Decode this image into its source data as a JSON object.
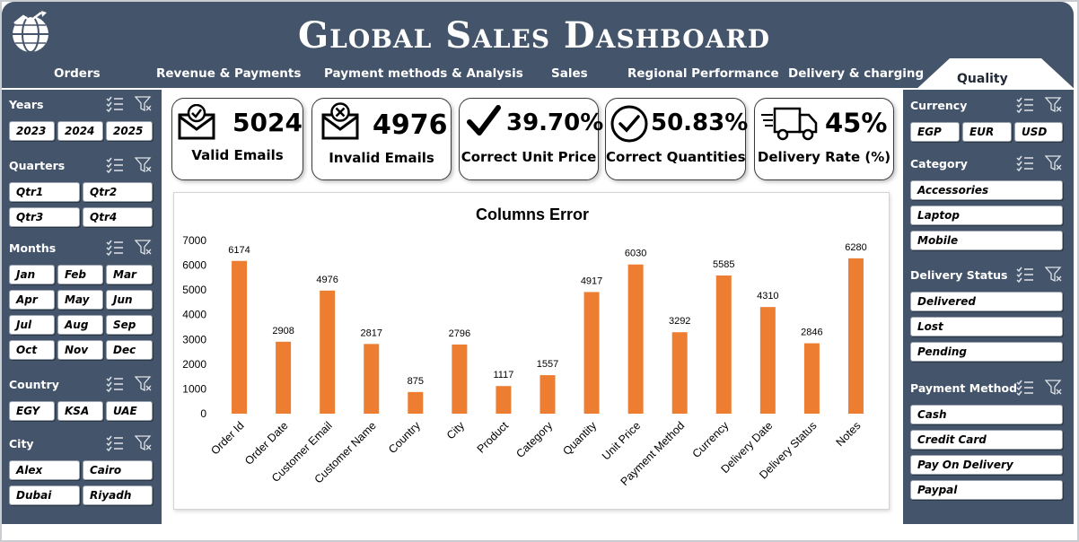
{
  "header": {
    "title": "Global Sales Dashboard",
    "tabs": [
      {
        "label": "Orders"
      },
      {
        "label": "Revenue & Payments"
      },
      {
        "label": "Payment methods & Analysis"
      },
      {
        "label": "Sales"
      },
      {
        "label": "Regional Performance"
      },
      {
        "label": "Delivery & charging"
      },
      {
        "label": "Quality"
      }
    ],
    "active_tab": "Quality",
    "logo_icon": "globe-chart-icon"
  },
  "colors": {
    "header_bg": "#44546a",
    "panel_bg": "#44546a",
    "bar": "#ed7d31",
    "text_light": "#ffffff"
  },
  "left_filters": {
    "years": {
      "title": "Years",
      "options": [
        "2023",
        "2024",
        "2025"
      ]
    },
    "quarters": {
      "title": "Quarters",
      "options": [
        "Qtr1",
        "Qtr2",
        "Qtr3",
        "Qtr4"
      ]
    },
    "months": {
      "title": "Months",
      "options": [
        "Jan",
        "Feb",
        "Mar",
        "Apr",
        "May",
        "Jun",
        "Jul",
        "Aug",
        "Sep",
        "Oct",
        "Nov",
        "Dec"
      ]
    },
    "country": {
      "title": "Country",
      "options": [
        "EGY",
        "KSA",
        "UAE"
      ]
    },
    "city": {
      "title": "City",
      "options": [
        "Alex",
        "Cairo",
        "Dubai",
        "Riyadh"
      ]
    }
  },
  "right_filters": {
    "currency": {
      "title": "Currency",
      "options": [
        "EGP",
        "EUR",
        "USD"
      ]
    },
    "category": {
      "title": "Category",
      "options": [
        "Accessories",
        "Laptop",
        "Mobile"
      ]
    },
    "delivery_status": {
      "title": "Delivery Status",
      "options": [
        "Delivered",
        "Lost",
        "Pending"
      ]
    },
    "payment_method": {
      "title": "Payment Method",
      "options": [
        "Cash",
        "Credit Card",
        "Pay On Delivery",
        "Paypal"
      ]
    }
  },
  "kpis": [
    {
      "value": "5024",
      "label": "Valid Emails",
      "icon": "envelope-check-icon"
    },
    {
      "value": "4976",
      "label": "Invalid Emails",
      "icon": "envelope-x-icon"
    },
    {
      "value": "39.70%",
      "label": "Correct Unit Price",
      "icon": "checkmark-icon"
    },
    {
      "value": "50.83%",
      "label": "Correct Quantities",
      "icon": "circle-check-icon"
    },
    {
      "value": "45%",
      "label": "Delivery Rate (%)",
      "icon": "delivery-truck-icon"
    }
  ],
  "chart_data": {
    "type": "bar",
    "title": "Columns Error",
    "categories": [
      "Order Id",
      "Order Date",
      "Customer Email",
      "Customer Name",
      "Country",
      "City",
      "Product",
      "Category",
      "Quantity",
      "Unit Price",
      "Payment Method",
      "Currency",
      "Delivery Date",
      "Delivery Status",
      "Notes"
    ],
    "values": [
      6174,
      2908,
      4976,
      2817,
      875,
      2796,
      1117,
      1557,
      4917,
      6030,
      3292,
      5585,
      4310,
      2846,
      6280
    ],
    "ylim": [
      0,
      7000
    ],
    "yticks": [
      0,
      1000,
      2000,
      3000,
      4000,
      5000,
      6000,
      7000
    ],
    "data_labels": true,
    "grid": false,
    "legend": "none"
  }
}
